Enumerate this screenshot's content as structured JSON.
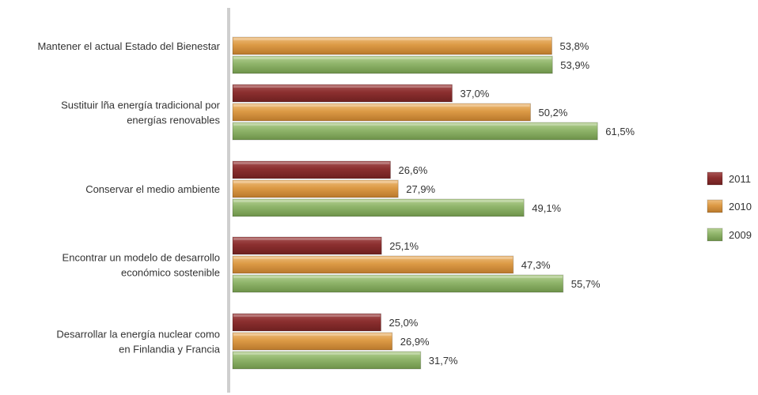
{
  "chart_data": {
    "type": "bar",
    "orientation": "horizontal",
    "categories": [
      [
        "Mantener el actual Estado del Bienestar"
      ],
      [
        "Sustituir lña energía tradicional por",
        "energías renovables"
      ],
      [
        "Conservar el medio ambiente"
      ],
      [
        "Encontrar un modelo de desarrollo",
        "económico sostenible"
      ],
      [
        "Desarrollar la energía nuclear como",
        "en Finlandia y Francia"
      ]
    ],
    "series": [
      {
        "name": "2011",
        "color": "#8b2f2f",
        "values": [
          null,
          37.0,
          26.6,
          25.1,
          25.0
        ],
        "labels": [
          "",
          "37,0%",
          "26,6%",
          "25,1%",
          "25,0%"
        ]
      },
      {
        "name": "2010",
        "color": "#dc9a45",
        "values": [
          53.8,
          50.2,
          27.9,
          47.3,
          26.9
        ],
        "labels": [
          "53,8%",
          "50,2%",
          "27,9%",
          "47,3%",
          "26,9%"
        ]
      },
      {
        "name": "2009",
        "color": "#8fb46a",
        "values": [
          53.9,
          61.5,
          49.1,
          55.7,
          31.7
        ],
        "labels": [
          "53,9%",
          "61,5%",
          "49,1%",
          "55,7%",
          "31,7%"
        ]
      }
    ],
    "unit": "%",
    "xlim": [
      0,
      100
    ],
    "grid": false,
    "legend_position": "right"
  }
}
